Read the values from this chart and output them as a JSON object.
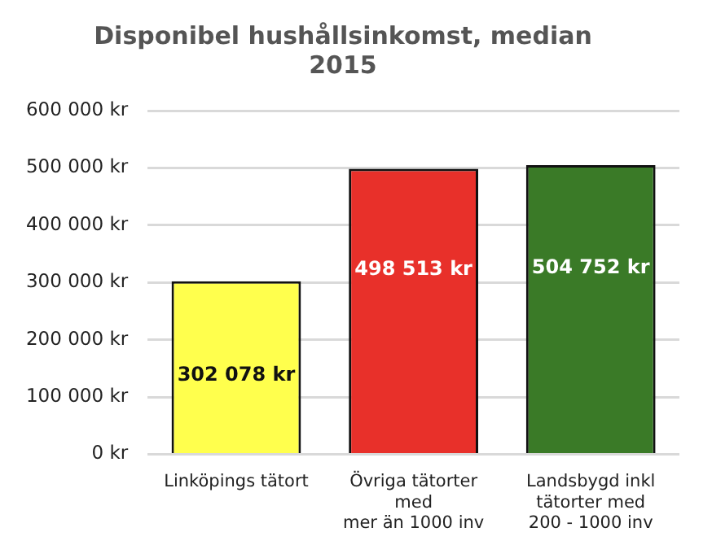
{
  "chart_data": {
    "type": "bar",
    "title": "Disponibel hushållsinkomst, median\n2015",
    "categories": [
      "Linköpings tätort",
      "Övriga tätorter\nmed\nmer än 1000 inv",
      "Landsbygd inkl\ntätorter med\n200 - 1000 inv"
    ],
    "values": [
      302078,
      498513,
      504752
    ],
    "colors": [
      "#ffff4d",
      "#e8302a",
      "#3a7a27"
    ],
    "value_labels": [
      "302 078 kr",
      "498 513 kr",
      "504 752 kr"
    ],
    "ylim": [
      0,
      600000
    ],
    "yticks": [
      {
        "value": 0,
        "label": "0 kr"
      },
      {
        "value": 100000,
        "label": "100 000 kr"
      },
      {
        "value": 200000,
        "label": "200 000 kr"
      },
      {
        "value": 300000,
        "label": "300 000 kr"
      },
      {
        "value": 400000,
        "label": "400 000 kr"
      },
      {
        "value": 500000,
        "label": "500 000 kr"
      },
      {
        "value": 600000,
        "label": "600 000 kr"
      }
    ],
    "grid": "y"
  }
}
